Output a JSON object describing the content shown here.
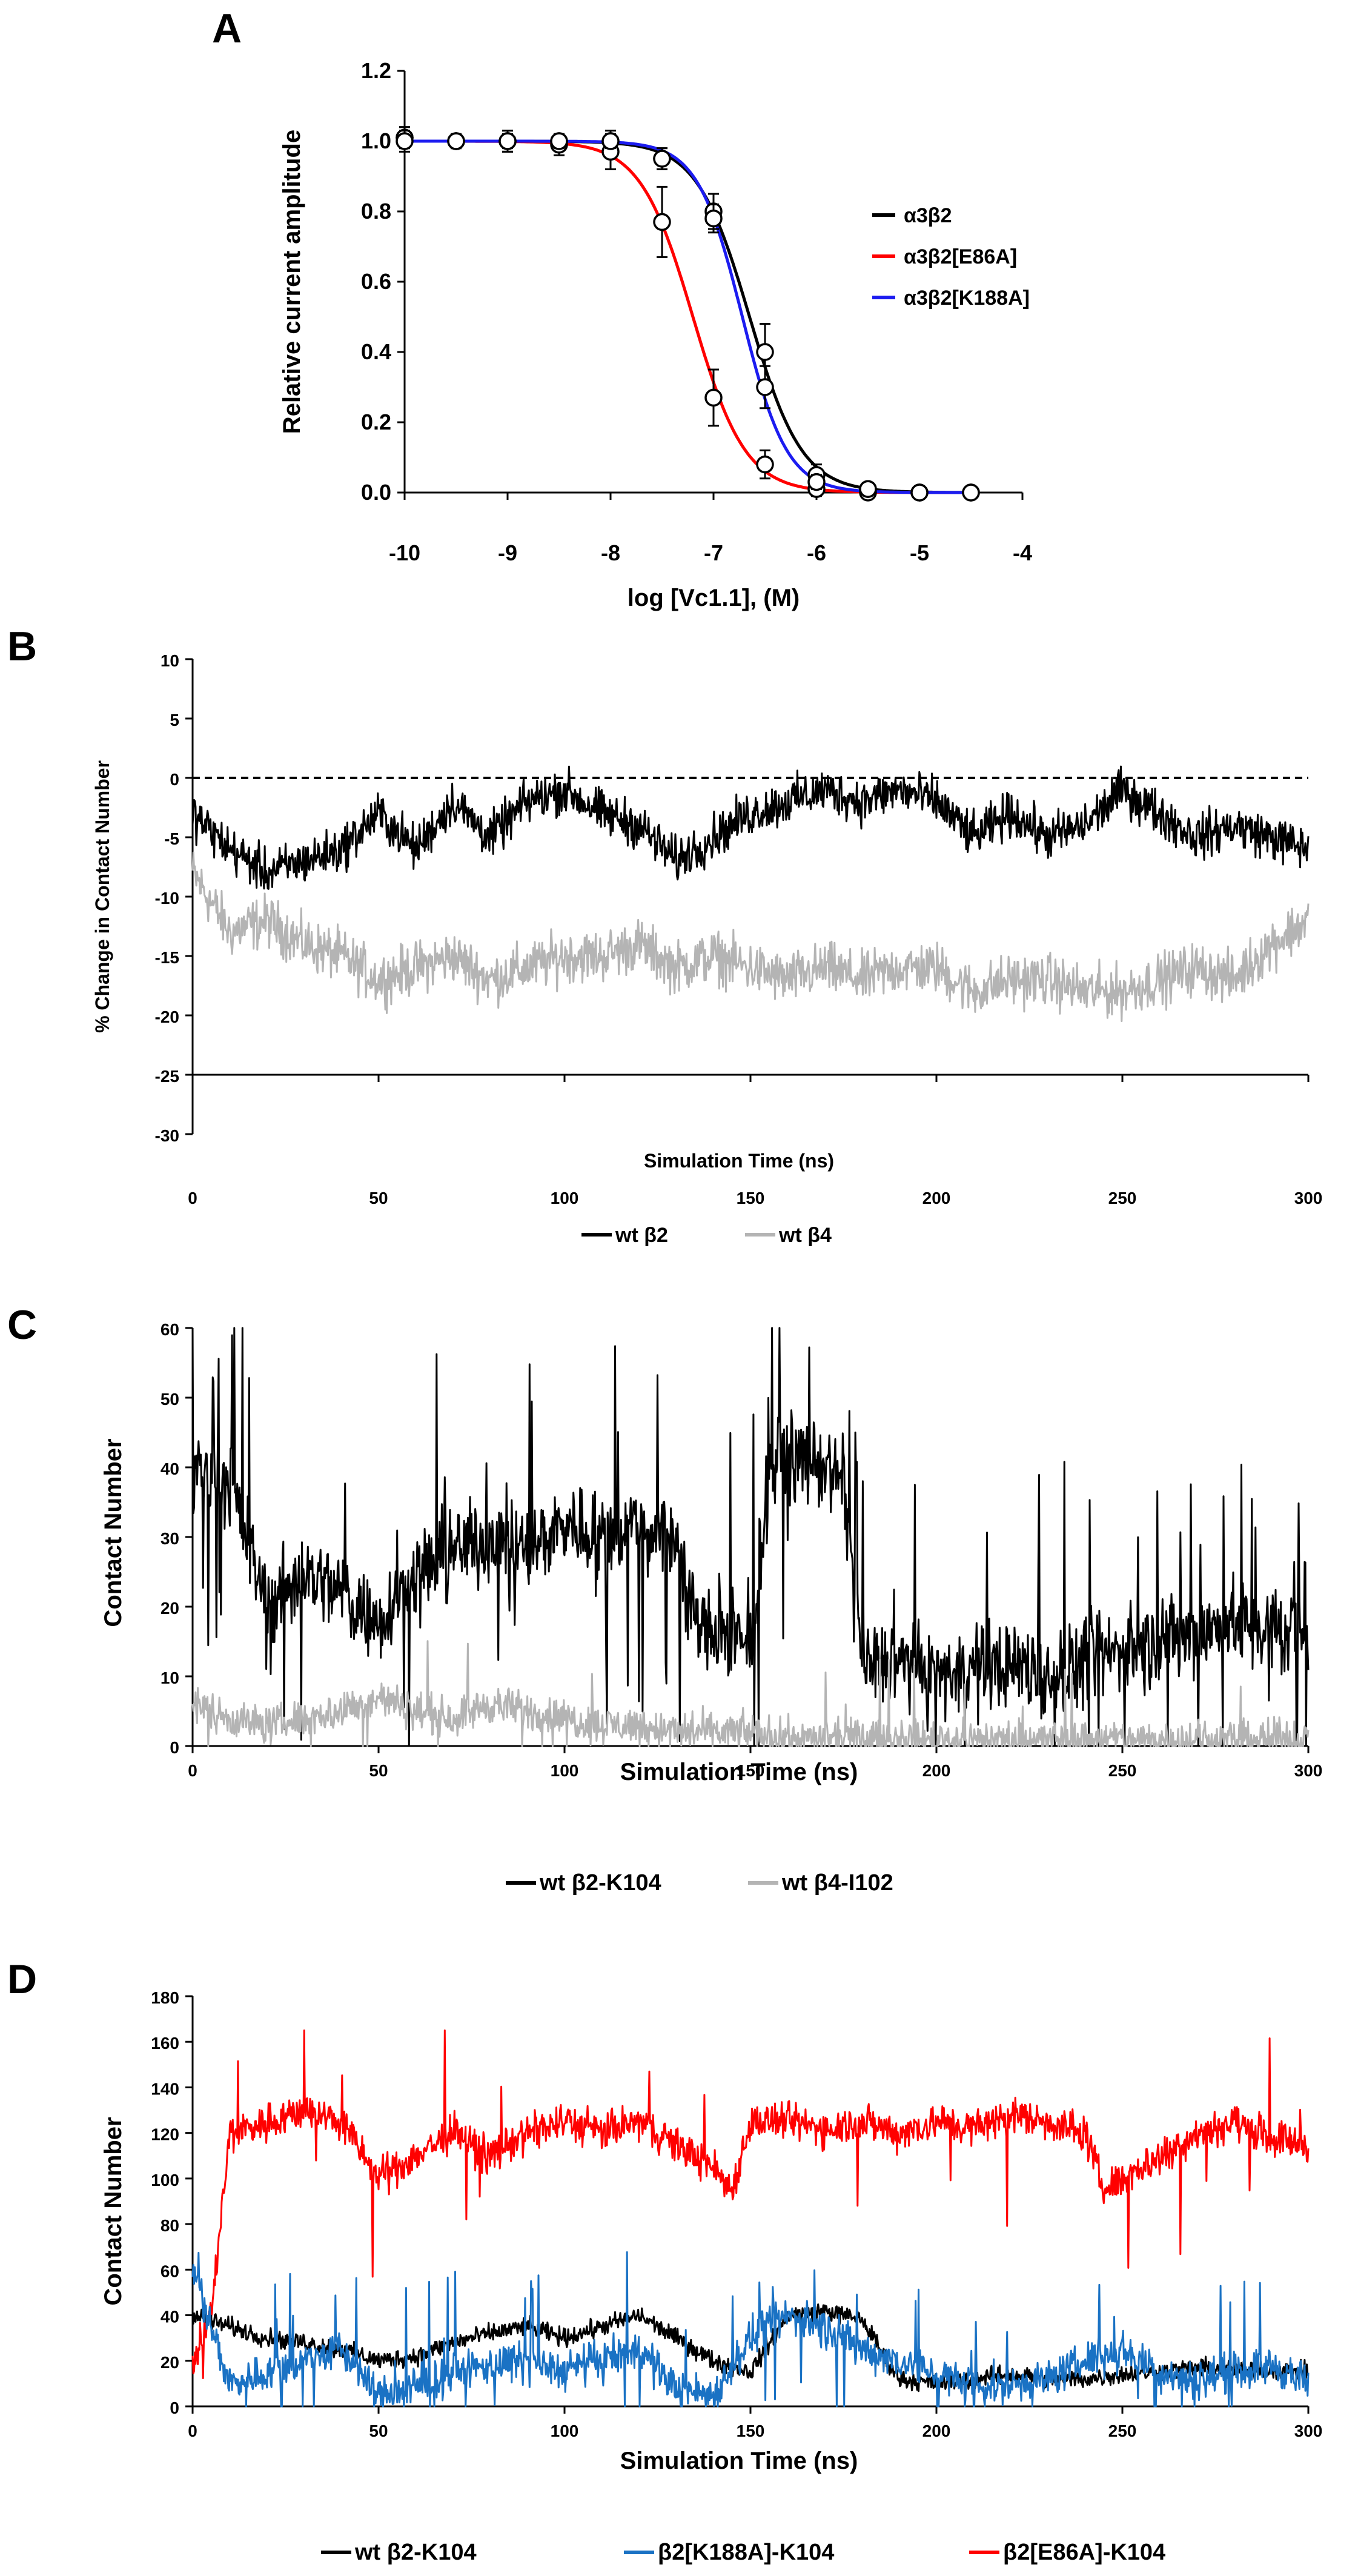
{
  "chart_data": [
    {
      "panel": "A",
      "type": "line",
      "title": "",
      "xlabel": "log [Vc1.1], (M)",
      "ylabel": "Relative current amplitude",
      "xlim": [
        -10,
        -4
      ],
      "ylim": [
        0,
        1.2
      ],
      "xticks": [
        "-10",
        "-9",
        "-8",
        "-7",
        "-6",
        "-5",
        "-4"
      ],
      "yticks": [
        "0.0",
        "0.2",
        "0.4",
        "0.6",
        "0.8",
        "1.0",
        "1.2"
      ],
      "legend_position": "right",
      "series": [
        {
          "name": "α3β2",
          "color": "#000000",
          "fit": {
            "logIC50": -6.65,
            "hill": 1.7
          },
          "points": [
            {
              "x": -10,
              "y": 1.01,
              "err": 0.03
            },
            {
              "x": -9.5,
              "y": 1.0,
              "err": 0.02
            },
            {
              "x": -9,
              "y": 1.0,
              "err": 0.03
            },
            {
              "x": -8.5,
              "y": 1.0,
              "err": 0.02
            },
            {
              "x": -8,
              "y": 1.0,
              "err": 0.03
            },
            {
              "x": -7.5,
              "y": 0.95,
              "err": 0.03
            },
            {
              "x": -7,
              "y": 0.8,
              "err": 0.05
            },
            {
              "x": -6.5,
              "y": 0.4,
              "err": 0.08
            },
            {
              "x": -6,
              "y": 0.05,
              "err": 0.03
            },
            {
              "x": -5.5,
              "y": 0.01,
              "err": 0.01
            },
            {
              "x": -5,
              "y": 0.0,
              "err": 0.01
            },
            {
              "x": -4.5,
              "y": 0.0,
              "err": 0.01
            }
          ]
        },
        {
          "name": "α3β2[E86A]",
          "color": "#ff0000",
          "fit": {
            "logIC50": -7.2,
            "hill": 1.7
          },
          "points": [
            {
              "x": -10,
              "y": 1.01,
              "err": 0.03
            },
            {
              "x": -9.5,
              "y": 1.0,
              "err": 0.02
            },
            {
              "x": -9,
              "y": 1.0,
              "err": 0.03
            },
            {
              "x": -8.5,
              "y": 0.99,
              "err": 0.03
            },
            {
              "x": -8,
              "y": 0.97,
              "err": 0.05
            },
            {
              "x": -7.5,
              "y": 0.77,
              "err": 0.1
            },
            {
              "x": -7,
              "y": 0.27,
              "err": 0.08
            },
            {
              "x": -6.5,
              "y": 0.08,
              "err": 0.04
            },
            {
              "x": -6,
              "y": 0.01,
              "err": 0.02
            },
            {
              "x": -5.5,
              "y": 0.0,
              "err": 0.01
            },
            {
              "x": -5,
              "y": 0.0,
              "err": 0.01
            },
            {
              "x": -4.5,
              "y": 0.0,
              "err": 0.01
            }
          ]
        },
        {
          "name": "α3β2[K188A]",
          "color": "#1c1cf0",
          "fit": {
            "logIC50": -6.72,
            "hill": 2.0
          },
          "points": [
            {
              "x": -10,
              "y": 1.0,
              "err": 0.03
            },
            {
              "x": -9.5,
              "y": 1.0,
              "err": 0.02
            },
            {
              "x": -9,
              "y": 1.0,
              "err": 0.02
            },
            {
              "x": -8.5,
              "y": 1.0,
              "err": 0.02
            },
            {
              "x": -8,
              "y": 1.0,
              "err": 0.02
            },
            {
              "x": -7.5,
              "y": 0.95,
              "err": 0.03
            },
            {
              "x": -7,
              "y": 0.78,
              "err": 0.04
            },
            {
              "x": -6.5,
              "y": 0.3,
              "err": 0.06
            },
            {
              "x": -6,
              "y": 0.03,
              "err": 0.02
            },
            {
              "x": -5.5,
              "y": 0.01,
              "err": 0.01
            },
            {
              "x": -5,
              "y": 0.0,
              "err": 0.01
            },
            {
              "x": -4.5,
              "y": 0.0,
              "err": 0.01
            }
          ]
        }
      ]
    },
    {
      "panel": "B",
      "type": "line",
      "title": "",
      "xlabel": "Simulation Time (ns)",
      "ylabel": "% Change in Contact Number",
      "xlim": [
        0,
        300
      ],
      "ylim": [
        -30,
        10
      ],
      "xticks": [
        "0",
        "50",
        "100",
        "150",
        "200",
        "250",
        "300"
      ],
      "yticks": [
        "-30",
        "-25",
        "-20",
        "-15",
        "-10",
        "-5",
        "0",
        "5",
        "10"
      ],
      "reference_line": {
        "y": 0,
        "style": "dashed"
      },
      "legend_position": "bottom",
      "series": [
        {
          "name": "wt β2",
          "color": "#000000",
          "x": [
            0,
            10,
            20,
            30,
            40,
            50,
            60,
            70,
            80,
            90,
            100,
            110,
            120,
            130,
            140,
            150,
            160,
            170,
            180,
            190,
            200,
            210,
            220,
            230,
            240,
            250,
            260,
            270,
            280,
            290,
            300
          ],
          "y": [
            -3,
            -6,
            -8,
            -7,
            -6,
            -3,
            -6,
            -2,
            -5,
            -2,
            -1,
            -3,
            -4,
            -7,
            -5,
            -3,
            -2,
            -1,
            -2,
            -1,
            -2,
            -5,
            -3,
            -5,
            -4,
            -1,
            -3,
            -5,
            -4,
            -5,
            -6
          ]
        },
        {
          "name": "wt β4",
          "color": "#b4b4b4",
          "x": [
            0,
            10,
            20,
            30,
            40,
            50,
            60,
            70,
            80,
            90,
            100,
            110,
            120,
            130,
            140,
            150,
            160,
            170,
            180,
            190,
            200,
            210,
            220,
            230,
            240,
            250,
            260,
            270,
            280,
            290,
            300
          ],
          "y": [
            -8,
            -13,
            -12,
            -14,
            -15,
            -17,
            -16,
            -15,
            -17,
            -16,
            -15,
            -15,
            -14,
            -16,
            -15,
            -16,
            -17,
            -16,
            -17,
            -16,
            -16,
            -18,
            -17,
            -17,
            -18,
            -18,
            -17,
            -16,
            -17,
            -14,
            -12
          ]
        }
      ]
    },
    {
      "panel": "C",
      "type": "line",
      "title": "",
      "xlabel": "Simulation Time (ns)",
      "ylabel": "Contact Number",
      "xlim": [
        0,
        300
      ],
      "ylim": [
        0,
        60
      ],
      "xticks": [
        "0",
        "50",
        "100",
        "150",
        "200",
        "250",
        "300"
      ],
      "yticks": [
        "0",
        "10",
        "20",
        "30",
        "40",
        "50",
        "60"
      ],
      "legend_position": "bottom",
      "series": [
        {
          "name": "wt β2-K104",
          "color": "#000000",
          "x": [
            0,
            10,
            20,
            30,
            40,
            50,
            60,
            70,
            80,
            90,
            100,
            110,
            120,
            130,
            135,
            140,
            150,
            155,
            160,
            170,
            175,
            180,
            190,
            200,
            210,
            220,
            230,
            240,
            250,
            260,
            270,
            280,
            290,
            300
          ],
          "y": [
            40,
            38,
            20,
            25,
            22,
            18,
            25,
            28,
            30,
            28,
            32,
            30,
            32,
            30,
            18,
            16,
            14,
            40,
            42,
            40,
            38,
            12,
            12,
            10,
            11,
            12,
            10,
            12,
            14,
            15,
            16,
            18,
            17,
            15
          ]
        },
        {
          "name": "wt β4-I102",
          "color": "#b4b4b4",
          "x": [
            0,
            10,
            20,
            30,
            40,
            50,
            60,
            70,
            80,
            90,
            100,
            110,
            120,
            130,
            140,
            150,
            160,
            170,
            180,
            190,
            200,
            210,
            220,
            230,
            240,
            250,
            260,
            270,
            280,
            290,
            300
          ],
          "y": [
            6,
            4,
            3,
            4,
            5,
            7,
            5,
            4,
            6,
            5,
            4,
            3,
            3,
            2,
            2,
            2,
            1,
            1,
            1,
            1,
            1,
            1,
            1,
            1,
            1,
            1,
            1,
            1,
            1,
            1,
            1
          ]
        }
      ]
    },
    {
      "panel": "D",
      "type": "line",
      "title": "",
      "xlabel": "Simulation Time (ns)",
      "ylabel": "Contact Number",
      "xlim": [
        0,
        300
      ],
      "ylim": [
        0,
        180
      ],
      "xticks": [
        "0",
        "50",
        "100",
        "150",
        "200",
        "250",
        "300"
      ],
      "yticks": [
        "0",
        "20",
        "40",
        "60",
        "80",
        "100",
        "120",
        "140",
        "160",
        "180"
      ],
      "legend_position": "bottom",
      "series": [
        {
          "name": "wt β2-K104",
          "color": "#000000",
          "x": [
            0,
            10,
            20,
            30,
            40,
            50,
            60,
            70,
            80,
            90,
            100,
            110,
            120,
            130,
            140,
            150,
            160,
            170,
            180,
            190,
            200,
            210,
            220,
            230,
            240,
            250,
            260,
            270,
            280,
            290,
            300
          ],
          "y": [
            40,
            35,
            30,
            28,
            25,
            20,
            22,
            28,
            32,
            35,
            30,
            35,
            40,
            30,
            20,
            15,
            40,
            42,
            38,
            12,
            10,
            12,
            14,
            12,
            12,
            14,
            15,
            17,
            16,
            16,
            15
          ]
        },
        {
          "name": "β2[K188A]-K104",
          "color": "#1a72c4",
          "x": [
            0,
            10,
            20,
            30,
            40,
            50,
            60,
            70,
            80,
            90,
            100,
            110,
            120,
            130,
            140,
            150,
            160,
            170,
            180,
            190,
            200,
            210,
            220,
            230,
            240,
            250,
            260,
            270,
            280,
            290,
            300
          ],
          "y": [
            60,
            10,
            15,
            20,
            25,
            5,
            8,
            15,
            18,
            20,
            15,
            20,
            25,
            8,
            5,
            30,
            40,
            35,
            25,
            20,
            15,
            8,
            10,
            12,
            20,
            25,
            15,
            12,
            15,
            18,
            10
          ]
        },
        {
          "name": "β2[E86A]-K104",
          "color": "#ff0000",
          "x": [
            0,
            5,
            10,
            20,
            30,
            40,
            50,
            60,
            70,
            80,
            90,
            100,
            110,
            120,
            130,
            140,
            145,
            150,
            160,
            170,
            180,
            190,
            200,
            210,
            220,
            230,
            240,
            245,
            250,
            260,
            270,
            280,
            290,
            300
          ],
          "y": [
            20,
            40,
            120,
            125,
            130,
            125,
            100,
            110,
            120,
            110,
            120,
            125,
            120,
            125,
            115,
            105,
            95,
            125,
            125,
            122,
            125,
            120,
            125,
            122,
            128,
            125,
            120,
            95,
            100,
            110,
            120,
            125,
            118,
            115
          ]
        }
      ]
    }
  ]
}
